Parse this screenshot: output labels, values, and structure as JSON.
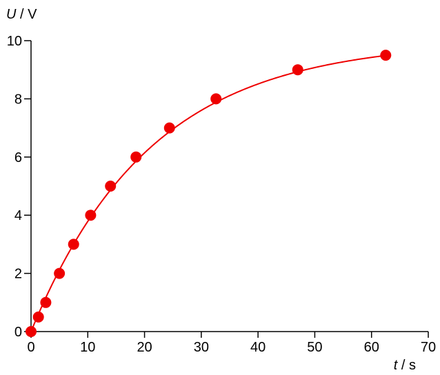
{
  "chart_data": {
    "type": "scatter",
    "title": "",
    "xlabel": {
      "symbol": "t",
      "unit": " / s"
    },
    "ylabel": {
      "symbol": "U",
      "unit": " / V"
    },
    "xlim": [
      0,
      70
    ],
    "ylim": [
      0,
      10
    ],
    "x_ticks": [
      "0",
      "10",
      "20",
      "30",
      "40",
      "50",
      "60",
      "70"
    ],
    "y_ticks": [
      "0",
      "2",
      "4",
      "6",
      "8",
      "10"
    ],
    "grid": false,
    "legend": "none",
    "colors": {
      "series": "#ee0000",
      "axis": "#000000"
    },
    "series": [
      {
        "points": [
          {
            "x": 0.0,
            "y": 0.0
          },
          {
            "x": 1.3,
            "y": 0.5
          },
          {
            "x": 2.6,
            "y": 1.0
          },
          {
            "x": 5.0,
            "y": 2.0
          },
          {
            "x": 7.5,
            "y": 3.0
          },
          {
            "x": 10.5,
            "y": 4.0
          },
          {
            "x": 14.0,
            "y": 5.0
          },
          {
            "x": 18.5,
            "y": 6.0
          },
          {
            "x": 24.4,
            "y": 7.0
          },
          {
            "x": 32.6,
            "y": 8.0
          },
          {
            "x": 47.0,
            "y": 9.0
          },
          {
            "x": 62.5,
            "y": 9.5
          }
        ],
        "fit_curve": {
          "form": "saturation",
          "U_max": 10,
          "tau_s": 21
        }
      }
    ]
  }
}
